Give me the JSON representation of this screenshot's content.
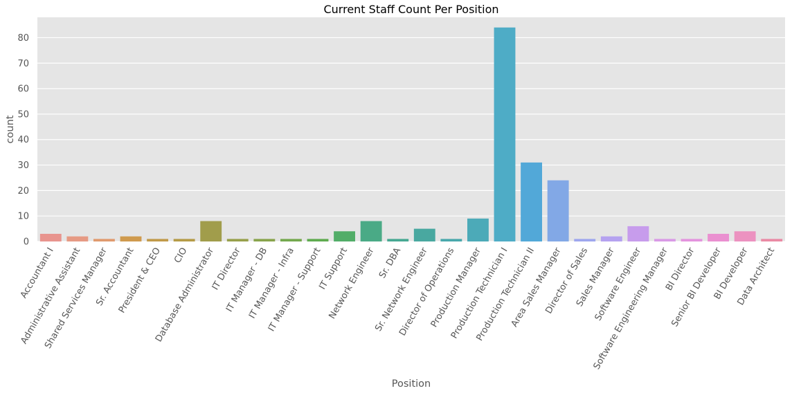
{
  "chart_data": {
    "type": "bar",
    "title": "Current Staff Count Per Position",
    "xlabel": "Position",
    "ylabel": "count",
    "ylim": [
      0,
      88
    ],
    "yticks": [
      0,
      10,
      20,
      30,
      40,
      50,
      60,
      70,
      80
    ],
    "grid": true,
    "categories": [
      "Accountant I",
      "Administrative Assistant",
      "Shared Services Manager",
      "Sr. Accountant",
      "President & CEO",
      "CIO",
      "Database Administrator",
      "IT Director",
      "IT Manager - DB",
      "IT Manager - Infra",
      "IT Manager - Support",
      "IT Support",
      "Network Engineer",
      "Sr. DBA",
      "Sr. Network Engineer",
      "Director of Operations",
      "Production Manager",
      "Production Technician I",
      "Production Technician II",
      "Area Sales Manager",
      "Director of Sales",
      "Sales Manager",
      "Software Engineer",
      "Software Engineering Manager",
      "BI Director",
      "Senior BI Developer",
      "BI Developer",
      "Data Architect"
    ],
    "values": [
      3,
      2,
      1,
      2,
      1,
      1,
      8,
      1,
      1,
      1,
      1,
      4,
      8,
      1,
      5,
      1,
      9,
      84,
      31,
      24,
      1,
      2,
      6,
      1,
      1,
      3,
      4,
      1
    ],
    "colors": [
      "#e8948e",
      "#e69a84",
      "#e09a6e",
      "#cf9a4e",
      "#c19a4a",
      "#b59b47",
      "#a19d4b",
      "#97a04b",
      "#88a44c",
      "#74a84e",
      "#5fab4f",
      "#52ad68",
      "#4aaa86",
      "#47a893",
      "#49a8a0",
      "#4aa8ac",
      "#4caab8",
      "#4eacc6",
      "#52a8d8",
      "#82a8e6",
      "#9ea6ee",
      "#b5a2f0",
      "#c79cec",
      "#d99ae6",
      "#e394de",
      "#ea90d0",
      "#ec92c0",
      "#ea8aa5"
    ],
    "plot_background": "#e5e5e5",
    "gridline_color": "#ffffff"
  }
}
